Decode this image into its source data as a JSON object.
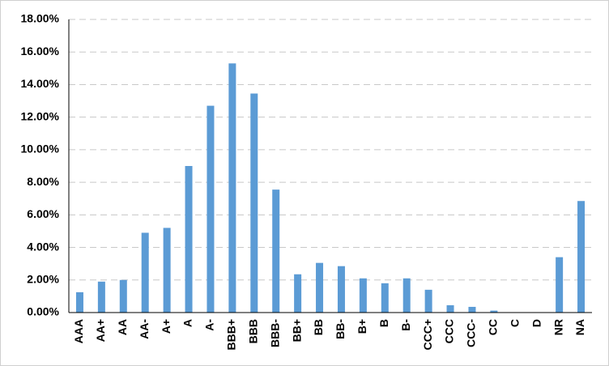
{
  "chart_data": {
    "type": "bar",
    "categories": [
      "AAA",
      "AA+",
      "AA",
      "AA-",
      "A+",
      "A",
      "A-",
      "BBB+",
      "BBB",
      "BBB-",
      "BB+",
      "BB",
      "BB-",
      "B+",
      "B",
      "B-",
      "CCC+",
      "CCC",
      "CCC-",
      "CC",
      "C",
      "D",
      "NR",
      "NA"
    ],
    "values": [
      1.25,
      1.9,
      2.0,
      4.9,
      5.2,
      9.0,
      12.7,
      15.3,
      13.45,
      7.55,
      2.35,
      3.05,
      2.85,
      2.1,
      1.8,
      2.1,
      1.4,
      0.45,
      0.35,
      0.12,
      0,
      0,
      3.4,
      6.85
    ],
    "color": "#5b9bd5",
    "ylim": [
      0,
      18
    ],
    "yticks": [
      {
        "value": 0,
        "label": "0.00%"
      },
      {
        "value": 2,
        "label": "2.00%"
      },
      {
        "value": 4,
        "label": "4.00%"
      },
      {
        "value": 6,
        "label": "6.00%"
      },
      {
        "value": 8,
        "label": "8.00%"
      },
      {
        "value": 10,
        "label": "10.00%"
      },
      {
        "value": 12,
        "label": "12.00%"
      },
      {
        "value": 14,
        "label": "14.00%"
      },
      {
        "value": 16,
        "label": "16.00%"
      },
      {
        "value": 18,
        "label": "18.00%"
      }
    ],
    "grid": true
  }
}
